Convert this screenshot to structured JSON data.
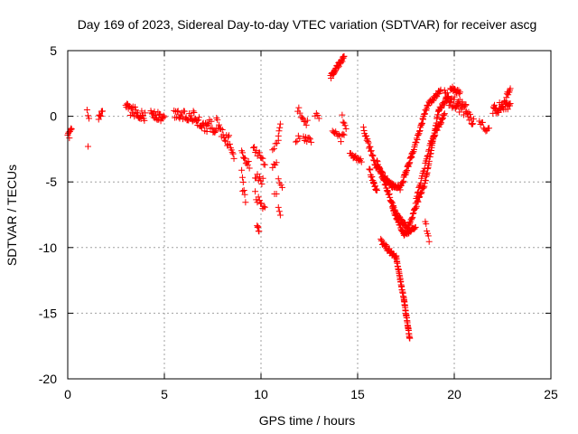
{
  "chart_data": {
    "type": "scatter",
    "title": "Day 169 of 2023, Sidereal Day-to-day VTEC variation (SDTVAR) for receiver ascg",
    "xlabel": "GPS time / hours",
    "ylabel": "SDTVAR / TECUs",
    "xlim": [
      0,
      25
    ],
    "ylim": [
      -20,
      5
    ],
    "xticks": [
      0,
      5,
      10,
      15,
      20,
      25
    ],
    "yticks": [
      5,
      0,
      -5,
      -10,
      -15,
      -20
    ],
    "xtick_labels": [
      "0",
      "5",
      "10",
      "15",
      "20",
      "25"
    ],
    "ytick_labels": [
      "5",
      "0",
      "-5",
      "-10",
      "-15",
      "-20"
    ],
    "grid": true,
    "marker": "+",
    "color": "#ff0000",
    "segments": [
      {
        "x0": 0.0,
        "x1": 0.2,
        "y0": -1.7,
        "y1": -1.0,
        "n": 8,
        "jitter": 0.3
      },
      {
        "x0": 1.0,
        "x1": 1.1,
        "y0": 0.4,
        "y1": -0.3,
        "n": 3,
        "jitter": 0.2
      },
      {
        "x0": 1.05,
        "x1": 1.05,
        "y0": -2.3,
        "y1": -2.3,
        "n": 1,
        "jitter": 0.0
      },
      {
        "x0": 1.6,
        "x1": 1.8,
        "y0": -0.3,
        "y1": 0.3,
        "n": 8,
        "jitter": 0.3
      },
      {
        "x0": 3.0,
        "x1": 4.0,
        "y0": 0.6,
        "y1": 0.0,
        "n": 30,
        "jitter": 0.4
      },
      {
        "x0": 4.3,
        "x1": 5.0,
        "y0": 0.3,
        "y1": -0.3,
        "n": 20,
        "jitter": 0.4
      },
      {
        "x0": 5.5,
        "x1": 6.5,
        "y0": 0.2,
        "y1": 0.0,
        "n": 25,
        "jitter": 0.4
      },
      {
        "x0": 6.5,
        "x1": 7.2,
        "y0": 0.0,
        "y1": -1.0,
        "n": 20,
        "jitter": 0.4
      },
      {
        "x0": 7.2,
        "x1": 7.7,
        "y0": -0.3,
        "y1": -1.3,
        "n": 12,
        "jitter": 0.4
      },
      {
        "x0": 7.7,
        "x1": 8.3,
        "y0": -0.5,
        "y1": -2.0,
        "n": 15,
        "jitter": 0.4
      },
      {
        "x0": 8.3,
        "x1": 8.6,
        "y0": -1.5,
        "y1": -3.0,
        "n": 8,
        "jitter": 0.3
      },
      {
        "x0": 9.0,
        "x1": 9.4,
        "y0": -2.8,
        "y1": -3.8,
        "n": 10,
        "jitter": 0.3
      },
      {
        "x0": 9.0,
        "x1": 9.2,
        "y0": -4.0,
        "y1": -6.3,
        "n": 6,
        "jitter": 0.3
      },
      {
        "x0": 9.05,
        "x1": 9.05,
        "y0": -5.7,
        "y1": -5.7,
        "n": 1,
        "jitter": 0.0
      },
      {
        "x0": 9.6,
        "x1": 10.2,
        "y0": -2.5,
        "y1": -3.5,
        "n": 12,
        "jitter": 0.3
      },
      {
        "x0": 9.7,
        "x1": 10.1,
        "y0": -4.6,
        "y1": -5.0,
        "n": 8,
        "jitter": 0.3
      },
      {
        "x0": 9.7,
        "x1": 10.2,
        "y0": -6.0,
        "y1": -7.2,
        "n": 10,
        "jitter": 0.3
      },
      {
        "x0": 9.8,
        "x1": 9.9,
        "y0": -8.3,
        "y1": -8.8,
        "n": 5,
        "jitter": 0.2
      },
      {
        "x0": 10.6,
        "x1": 10.9,
        "y0": -2.7,
        "y1": -1.8,
        "n": 5,
        "jitter": 0.2
      },
      {
        "x0": 10.6,
        "x1": 10.8,
        "y0": -4.0,
        "y1": -3.5,
        "n": 4,
        "jitter": 0.2
      },
      {
        "x0": 10.7,
        "x1": 10.8,
        "y0": -6.0,
        "y1": -6.0,
        "n": 2,
        "jitter": 0.1
      },
      {
        "x0": 10.9,
        "x1": 11.0,
        "y0": -1.5,
        "y1": -0.5,
        "n": 4,
        "jitter": 0.2
      },
      {
        "x0": 10.9,
        "x1": 11.1,
        "y0": -4.8,
        "y1": -5.3,
        "n": 4,
        "jitter": 0.2
      },
      {
        "x0": 10.9,
        "x1": 11.0,
        "y0": -7.0,
        "y1": -7.6,
        "n": 3,
        "jitter": 0.1
      },
      {
        "x0": 11.8,
        "x1": 12.0,
        "y0": -2.0,
        "y1": -1.5,
        "n": 4,
        "jitter": 0.2
      },
      {
        "x0": 11.9,
        "x1": 12.4,
        "y0": 0.5,
        "y1": -0.5,
        "n": 10,
        "jitter": 0.3
      },
      {
        "x0": 12.2,
        "x1": 12.6,
        "y0": -1.5,
        "y1": -2.0,
        "n": 8,
        "jitter": 0.3
      },
      {
        "x0": 12.8,
        "x1": 13.0,
        "y0": 0.2,
        "y1": -0.2,
        "n": 4,
        "jitter": 0.2
      },
      {
        "x0": 13.6,
        "x1": 14.3,
        "y0": 3.0,
        "y1": 4.5,
        "n": 30,
        "jitter": 0.2
      },
      {
        "x0": 13.7,
        "x1": 14.3,
        "y0": -1.0,
        "y1": -1.8,
        "n": 12,
        "jitter": 0.4
      },
      {
        "x0": 14.2,
        "x1": 14.4,
        "y0": 0.0,
        "y1": -1.0,
        "n": 5,
        "jitter": 0.3
      },
      {
        "x0": 14.6,
        "x1": 15.2,
        "y0": -3.0,
        "y1": -3.3,
        "n": 15,
        "jitter": 0.2
      },
      {
        "x0": 15.3,
        "x1": 16.0,
        "y0": -1.0,
        "y1": -4.0,
        "n": 25,
        "jitter": 0.2
      },
      {
        "x0": 15.6,
        "x1": 16.0,
        "y0": -4.0,
        "y1": -5.8,
        "n": 18,
        "jitter": 0.2
      },
      {
        "x0": 16.2,
        "x1": 17.0,
        "y0": -9.5,
        "y1": -10.8,
        "n": 30,
        "jitter": 0.2
      },
      {
        "x0": 17.0,
        "x1": 17.4,
        "y0": -10.8,
        "y1": -14.0,
        "n": 30,
        "jitter": 0.1
      },
      {
        "x0": 17.4,
        "x1": 17.7,
        "y0": -14.0,
        "y1": -17.0,
        "n": 30,
        "jitter": 0.1
      },
      {
        "x0": 16.0,
        "x1": 17.0,
        "y0": -3.5,
        "y1": -7.5,
        "n": 40,
        "jitter": 0.15
      },
      {
        "x0": 17.0,
        "x1": 17.6,
        "y0": -7.5,
        "y1": -8.5,
        "n": 25,
        "jitter": 0.15
      },
      {
        "x0": 17.6,
        "x1": 18.5,
        "y0": -8.5,
        "y1": -5.0,
        "n": 35,
        "jitter": 0.15
      },
      {
        "x0": 18.5,
        "x1": 19.2,
        "y0": -5.0,
        "y1": 0.5,
        "n": 35,
        "jitter": 0.15
      },
      {
        "x0": 19.2,
        "x1": 19.7,
        "y0": 0.5,
        "y1": 1.5,
        "n": 18,
        "jitter": 0.15
      },
      {
        "x0": 16.5,
        "x1": 17.2,
        "y0": -5.0,
        "y1": -5.5,
        "n": 25,
        "jitter": 0.15
      },
      {
        "x0": 17.2,
        "x1": 17.8,
        "y0": -5.5,
        "y1": -3.0,
        "n": 30,
        "jitter": 0.15
      },
      {
        "x0": 17.8,
        "x1": 18.6,
        "y0": -3.0,
        "y1": 0.8,
        "n": 35,
        "jitter": 0.15
      },
      {
        "x0": 18.6,
        "x1": 19.3,
        "y0": 0.8,
        "y1": 2.0,
        "n": 25,
        "jitter": 0.15
      },
      {
        "x0": 16.8,
        "x1": 17.4,
        "y0": -7.0,
        "y1": -9.0,
        "n": 25,
        "jitter": 0.15
      },
      {
        "x0": 17.4,
        "x1": 18.0,
        "y0": -9.0,
        "y1": -8.5,
        "n": 20,
        "jitter": 0.15
      },
      {
        "x0": 16.0,
        "x1": 16.8,
        "y0": -3.8,
        "y1": -5.5,
        "n": 20,
        "jitter": 0.15
      },
      {
        "x0": 18.0,
        "x1": 18.8,
        "y0": -6.5,
        "y1": -2.0,
        "n": 25,
        "jitter": 0.15
      },
      {
        "x0": 18.8,
        "x1": 19.5,
        "y0": -2.0,
        "y1": 0.2,
        "n": 25,
        "jitter": 0.2
      },
      {
        "x0": 18.5,
        "x1": 18.7,
        "y0": -8.0,
        "y1": -9.5,
        "n": 6,
        "jitter": 0.15
      },
      {
        "x0": 19.5,
        "x1": 20.6,
        "y0": 1.5,
        "y1": 0.5,
        "n": 40,
        "jitter": 0.5
      },
      {
        "x0": 19.8,
        "x1": 20.3,
        "y0": 2.2,
        "y1": 1.8,
        "n": 15,
        "jitter": 0.2
      },
      {
        "x0": 20.6,
        "x1": 21.0,
        "y0": 0.5,
        "y1": -0.5,
        "n": 12,
        "jitter": 0.4
      },
      {
        "x0": 21.3,
        "x1": 21.8,
        "y0": -0.5,
        "y1": -1.2,
        "n": 10,
        "jitter": 0.3
      },
      {
        "x0": 22.0,
        "x1": 22.9,
        "y0": 0.5,
        "y1": 1.0,
        "n": 35,
        "jitter": 0.4
      },
      {
        "x0": 22.7,
        "x1": 22.9,
        "y0": 1.5,
        "y1": 2.2,
        "n": 8,
        "jitter": 0.2
      }
    ]
  }
}
